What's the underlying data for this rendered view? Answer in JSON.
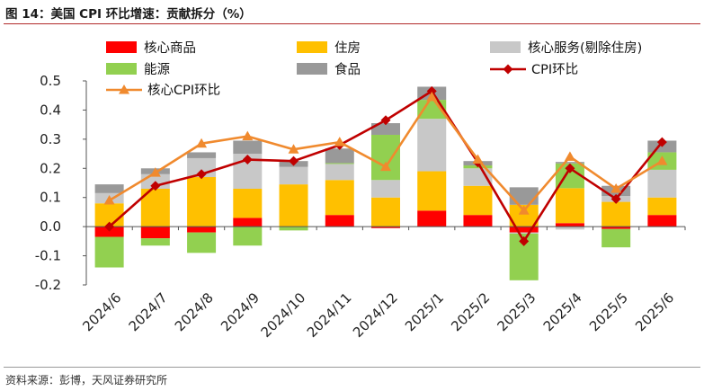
{
  "title": "图 14：美国 CPI 环比增速：贡献拆分（%）",
  "source": "资料来源：彭博，天风证券研究所",
  "chart_data": {
    "type": "bar",
    "stacked": true,
    "categories": [
      "2024/6",
      "2024/7",
      "2024/8",
      "2024/9",
      "2024/10",
      "2024/11",
      "2024/12",
      "2025/1",
      "2025/2",
      "2025/3",
      "2025/4",
      "2025/5",
      "2025/6"
    ],
    "ylim": [
      -0.2,
      0.5
    ],
    "yticks": [
      -0.2,
      -0.1,
      0.0,
      0.1,
      0.2,
      0.3,
      0.4,
      0.5
    ],
    "grid": false,
    "legend_position": "top",
    "series": [
      {
        "name": "核心商品",
        "type": "bar",
        "color": "#FF0000",
        "values": [
          -0.035,
          -0.04,
          -0.02,
          0.03,
          0.0,
          0.04,
          -0.005,
          0.055,
          0.04,
          -0.02,
          0.012,
          -0.008,
          0.04
        ]
      },
      {
        "name": "住房",
        "type": "bar",
        "color": "#FFC000",
        "values": [
          0.08,
          0.13,
          0.17,
          0.1,
          0.145,
          0.12,
          0.1,
          0.135,
          0.1,
          0.075,
          0.12,
          0.085,
          0.06
        ]
      },
      {
        "name": "核心服务(剔除住房)",
        "type": "bar",
        "color": "#C8C8C8",
        "values": [
          0.035,
          0.05,
          0.065,
          0.12,
          0.06,
          0.055,
          0.06,
          0.18,
          0.06,
          -0.004,
          -0.01,
          0.02,
          0.095
        ]
      },
      {
        "name": "能源",
        "type": "bar",
        "color": "#92D050",
        "values": [
          -0.105,
          -0.025,
          -0.07,
          -0.065,
          -0.013,
          0.003,
          0.155,
          0.065,
          0.01,
          -0.16,
          0.085,
          -0.063,
          0.06
        ]
      },
      {
        "name": "食品",
        "type": "bar",
        "color": "#999999",
        "values": [
          0.03,
          0.02,
          0.02,
          0.045,
          0.02,
          0.05,
          0.04,
          0.045,
          0.015,
          0.06,
          0.005,
          0.035,
          0.04
        ]
      },
      {
        "name": "CPI环比",
        "type": "line",
        "color": "#C00000",
        "marker": "diamond",
        "values": [
          0.0,
          0.14,
          0.18,
          0.23,
          0.225,
          0.28,
          0.365,
          0.465,
          0.22,
          -0.05,
          0.2,
          0.095,
          0.29
        ]
      },
      {
        "name": "核心CPI环比",
        "type": "line",
        "color": "#F08A2E",
        "marker": "triangle",
        "values": [
          0.09,
          0.185,
          0.285,
          0.31,
          0.265,
          0.29,
          0.205,
          0.445,
          0.23,
          0.055,
          0.24,
          0.13,
          0.225
        ]
      }
    ]
  }
}
